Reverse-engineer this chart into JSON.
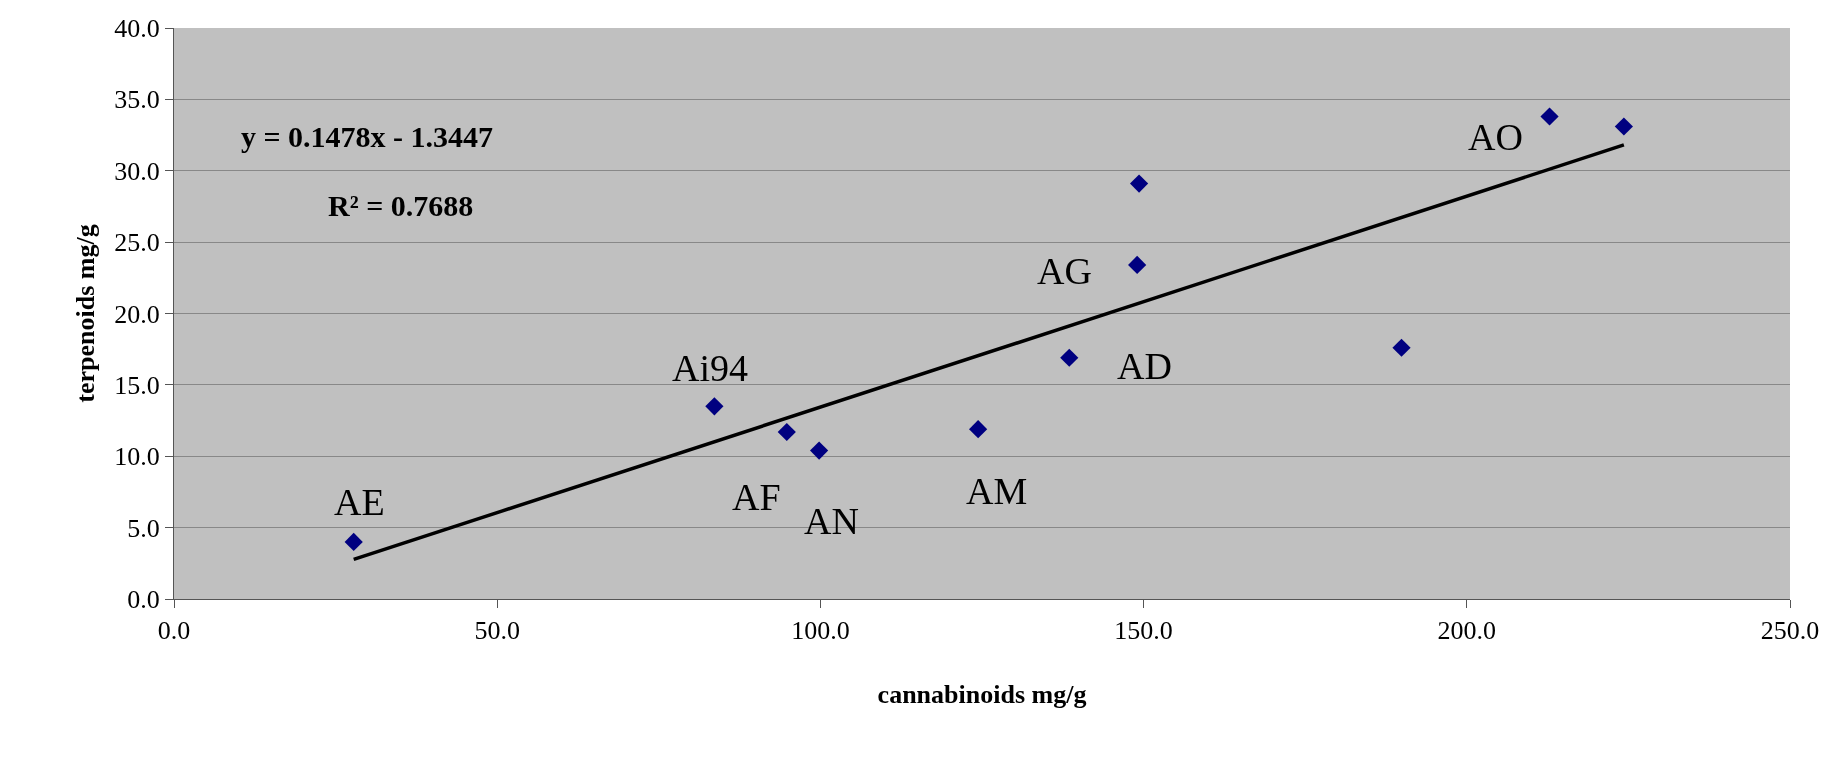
{
  "chart_data": {
    "type": "scatter",
    "xlabel": "cannabinoids mg/g",
    "ylabel": "terpenoids mg/g",
    "xlim": [
      0,
      250
    ],
    "ylim": [
      0,
      40
    ],
    "xticks": [
      {
        "value": 0,
        "label": "0.0"
      },
      {
        "value": 50,
        "label": "50.0"
      },
      {
        "value": 100,
        "label": "100.0"
      },
      {
        "value": 150,
        "label": "150.0"
      },
      {
        "value": 200,
        "label": "200.0"
      },
      {
        "value": 250,
        "label": "250.0"
      }
    ],
    "yticks": [
      {
        "value": 0,
        "label": "0.0"
      },
      {
        "value": 5,
        "label": "5.0"
      },
      {
        "value": 10,
        "label": "10.0"
      },
      {
        "value": 15,
        "label": "15.0"
      },
      {
        "value": 20,
        "label": "20.0"
      },
      {
        "value": 25,
        "label": "25.0"
      },
      {
        "value": 30,
        "label": "30.0"
      },
      {
        "value": 35,
        "label": "35.0"
      },
      {
        "value": 40,
        "label": "40.0"
      }
    ],
    "grid": "y",
    "series": [
      {
        "marker": "diamond",
        "color": "#000080",
        "x": [
          27.8,
          83.6,
          94.8,
          99.8,
          124.4,
          138.5,
          149.0,
          149.3,
          189.9,
          212.8,
          224.3
        ],
        "values": [
          4.0,
          13.5,
          11.7,
          10.4,
          11.9,
          16.9,
          23.4,
          29.1,
          17.6,
          33.8,
          33.1
        ]
      },
      {
        "type": "line",
        "marker": "none",
        "color": "#000000",
        "line_style": "solid",
        "x": [
          27.8,
          224.3
        ],
        "values": [
          2.77,
          31.81
        ]
      }
    ],
    "annotations": [
      "y = 0.1478x - 1.3447",
      "R² = 0.7688",
      {
        "text": "AE",
        "x": 27.8,
        "y": 4.0
      },
      {
        "text": "Ai94",
        "x": 83.6,
        "y": 13.5
      },
      {
        "text": "AF",
        "x": 94.8,
        "y": 11.7
      },
      {
        "text": "AN",
        "x": 99.8,
        "y": 10.4
      },
      {
        "text": "AM",
        "x": 124.4,
        "y": 11.9
      },
      {
        "text": "AD",
        "x": 138.5,
        "y": 16.9
      },
      {
        "text": "AG",
        "x": 149.0,
        "y": 23.4
      },
      {
        "text": "AO",
        "x": 212.8,
        "y": 33.8
      }
    ]
  }
}
